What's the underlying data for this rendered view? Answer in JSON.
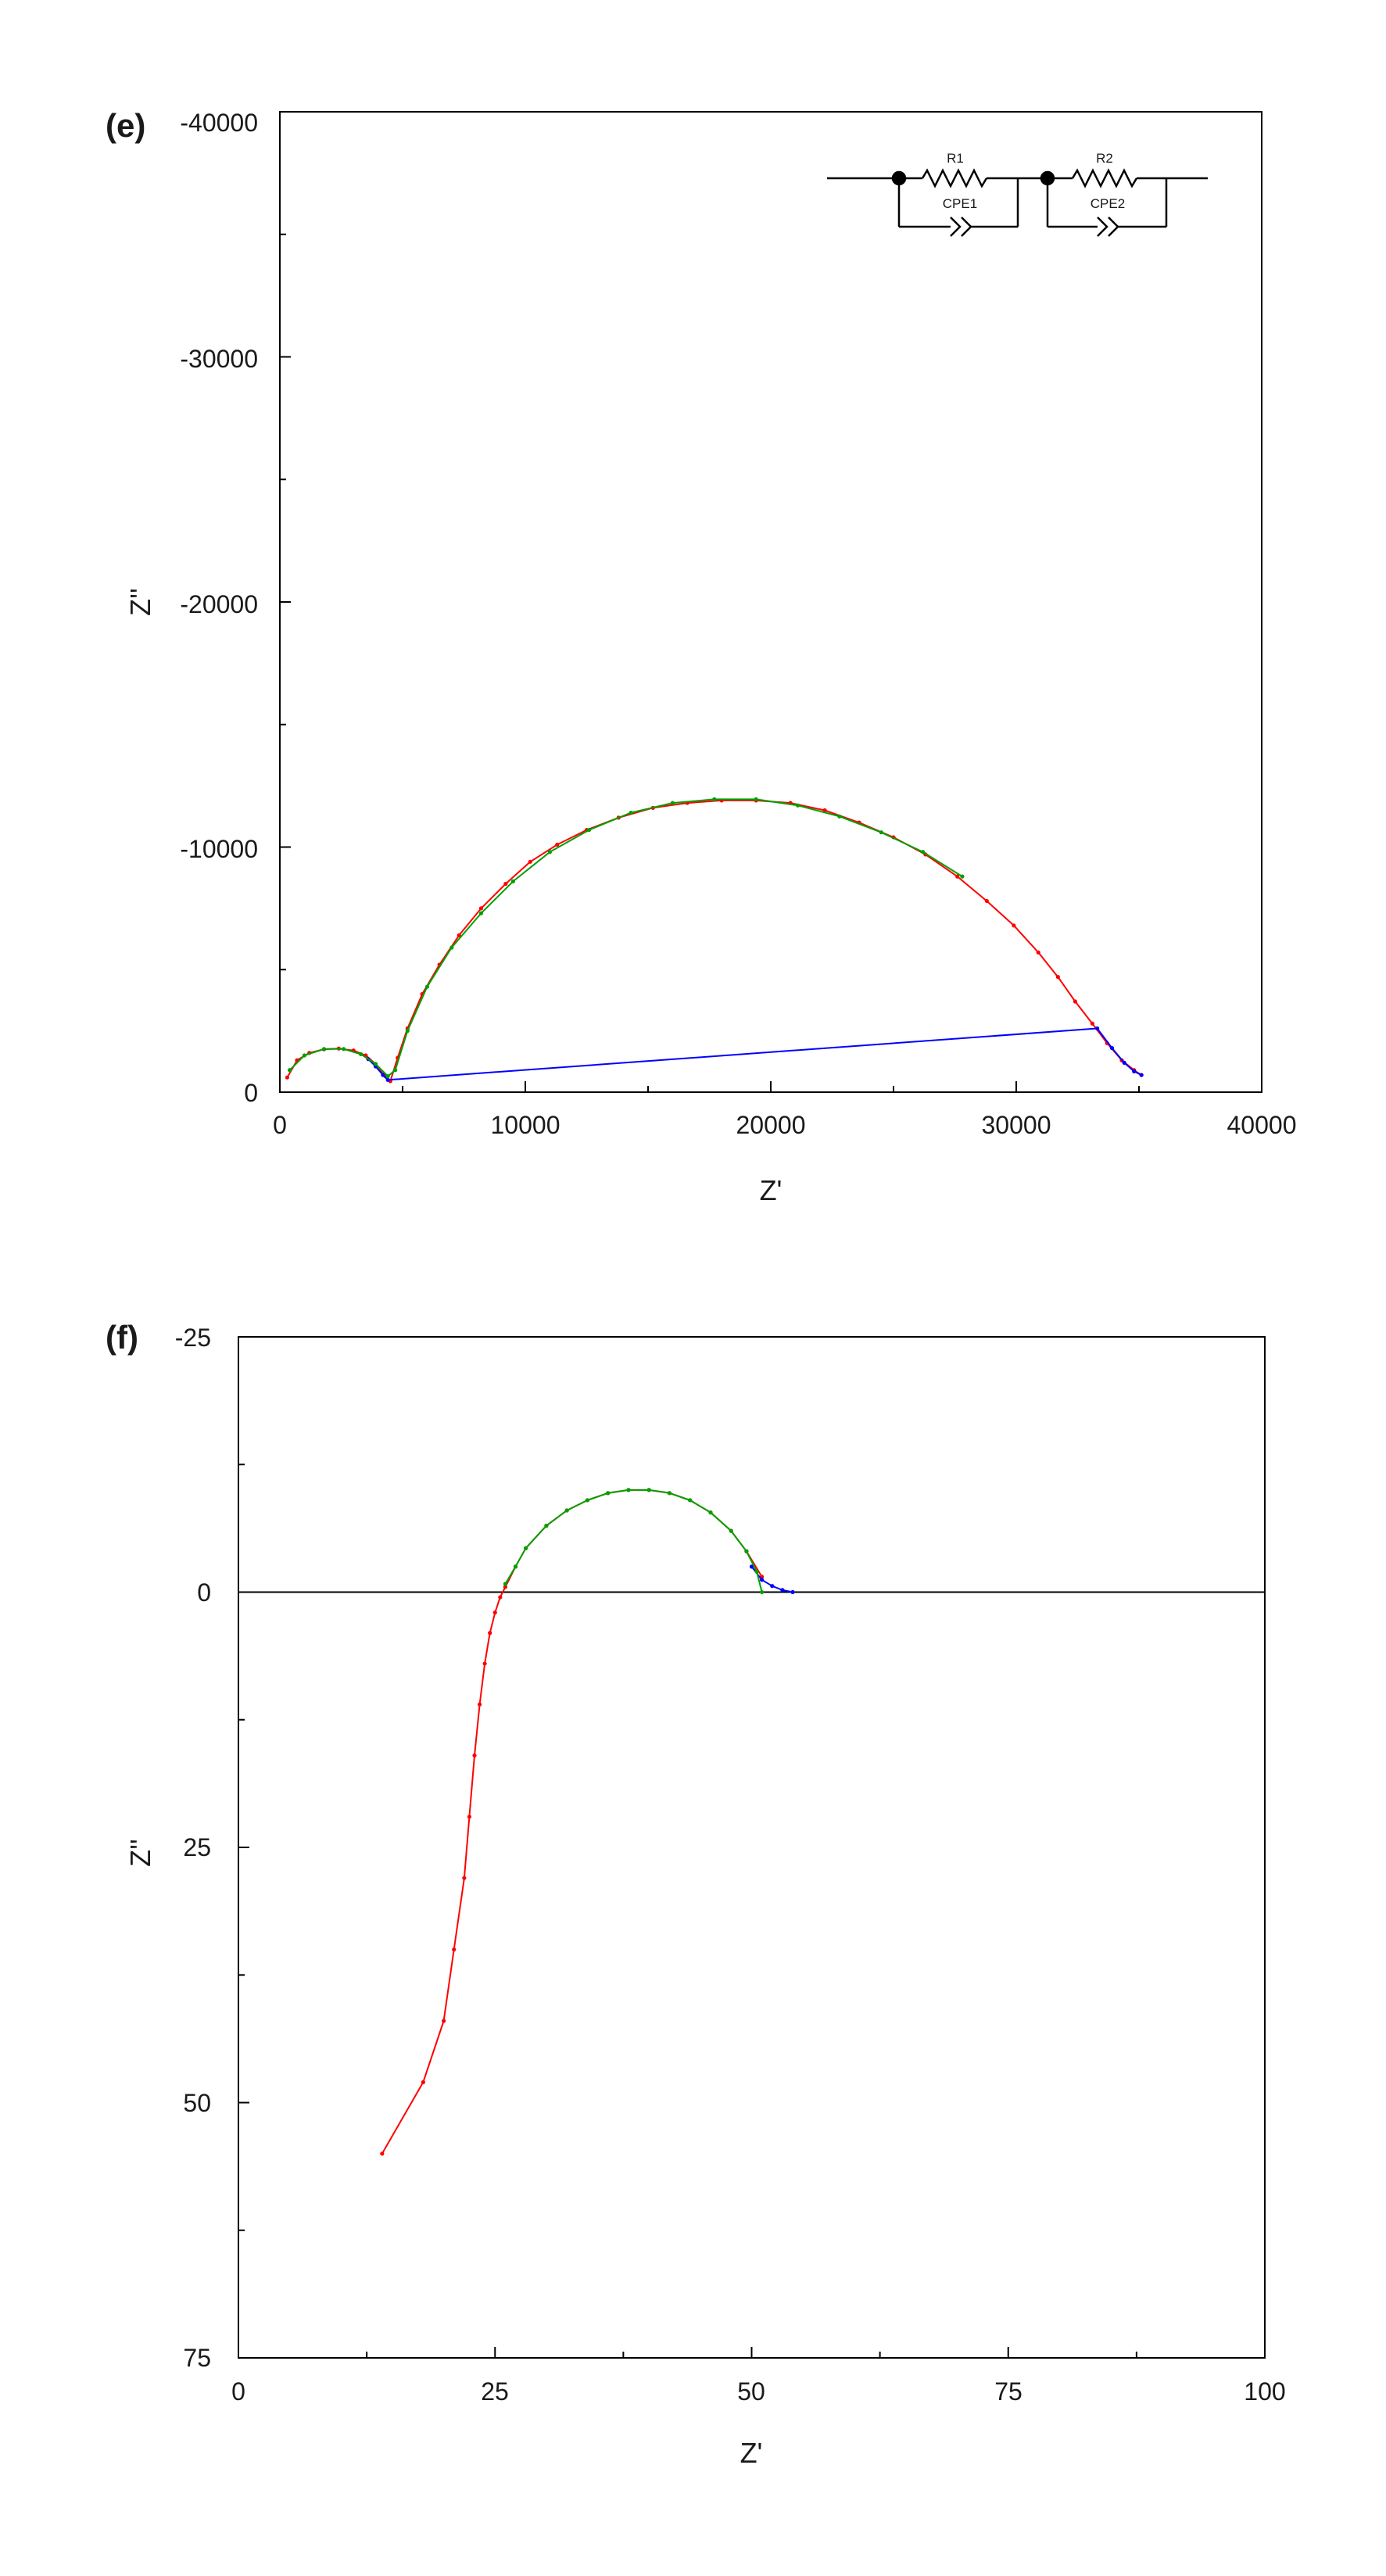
{
  "chart_data": [
    {
      "panel_label": "(e)",
      "type": "line",
      "xlabel": "Z'",
      "ylabel": "Z''",
      "xlim": [
        0,
        40000
      ],
      "ylim": [
        0,
        -40000
      ],
      "y_reversed": true,
      "x_ticks": [
        "0",
        "10000",
        "20000",
        "30000",
        "40000"
      ],
      "x_tick_values": [
        0,
        10000,
        20000,
        30000,
        40000
      ],
      "y_ticks": [
        "0",
        "-10000",
        "-20000",
        "-30000",
        "-40000"
      ],
      "y_tick_values": [
        0,
        -10000,
        -20000,
        -30000,
        -40000
      ],
      "grid": false,
      "inset": {
        "type": "circuit",
        "legend_position": "top-right",
        "labels": [
          "R1",
          "CPE1",
          "R2",
          "CPE2"
        ]
      },
      "series": [
        {
          "color": "#ff0000",
          "x": [
            300,
            700,
            1200,
            1800,
            2400,
            3000,
            3500,
            3900,
            4300,
            4500,
            4800,
            5200,
            5800,
            6500,
            7300,
            8200,
            9200,
            10200,
            11300,
            12500,
            13800,
            15200,
            16600,
            18000,
            19400,
            20800,
            22200,
            23600,
            25000,
            26300,
            27600,
            28800,
            29900,
            30900,
            31700,
            32400,
            33100,
            33700,
            34300,
            34800,
            35100
          ],
          "y": [
            -600,
            -1300,
            -1600,
            -1750,
            -1780,
            -1700,
            -1500,
            -1150,
            -650,
            -450,
            -1400,
            -2600,
            -4000,
            -5200,
            -6400,
            -7500,
            -8500,
            -9400,
            -10100,
            -10700,
            -11200,
            -11600,
            -11800,
            -11900,
            -11900,
            -11800,
            -11500,
            -11000,
            -10400,
            -9700,
            -8800,
            -7800,
            -6800,
            -5700,
            -4700,
            -3700,
            -2800,
            -2000,
            -1300,
            -900,
            -700
          ]
        },
        {
          "color": "#0000ff",
          "x": [
            3600,
            3900,
            4200,
            4400,
            33300,
            33900,
            34400,
            34800,
            35100
          ],
          "y": [
            -1350,
            -1050,
            -700,
            -500,
            -2600,
            -1800,
            -1200,
            -850,
            -700
          ]
        },
        {
          "color": "#00a000",
          "x": [
            400,
            1000,
            1800,
            2600,
            3300,
            3900,
            4400,
            4700,
            5200,
            6000,
            7000,
            8200,
            9500,
            11000,
            12600,
            14300,
            16000,
            17700,
            19400,
            21100,
            22800,
            24500,
            26200,
            27800
          ],
          "y": [
            -900,
            -1500,
            -1760,
            -1760,
            -1550,
            -1150,
            -650,
            -900,
            -2500,
            -4300,
            -5900,
            -7300,
            -8600,
            -9800,
            -10700,
            -11400,
            -11800,
            -11950,
            -11950,
            -11700,
            -11250,
            -10600,
            -9800,
            -8800
          ]
        }
      ]
    },
    {
      "panel_label": "(f)",
      "type": "line",
      "xlabel": "Z'",
      "ylabel": "Z''",
      "xlim": [
        0,
        100
      ],
      "ylim": [
        75,
        -25
      ],
      "y_reversed": true,
      "x_ticks": [
        "0",
        "25",
        "50",
        "75",
        "100"
      ],
      "x_tick_values": [
        0,
        25,
        50,
        75,
        100
      ],
      "y_ticks": [
        "-25",
        "0",
        "25",
        "50",
        "75"
      ],
      "y_tick_values": [
        -25,
        0,
        25,
        50,
        75
      ],
      "grid": false,
      "zero_line": 0,
      "series": [
        {
          "color": "#ff0000",
          "x": [
            14,
            18,
            20,
            21,
            22,
            22.5,
            23,
            23.5,
            24,
            24.5,
            25,
            25.5,
            26,
            27,
            28,
            30,
            32,
            34,
            36,
            38,
            40,
            42,
            44,
            46,
            48,
            49.5,
            51
          ],
          "y": [
            55,
            48,
            42,
            35,
            28,
            22,
            16,
            11,
            7,
            4,
            2,
            0.5,
            -0.5,
            -2.5,
            -4.3,
            -6.5,
            -8,
            -9,
            -9.7,
            -10,
            -10,
            -9.7,
            -9,
            -7.8,
            -6,
            -4,
            -1.5
          ]
        },
        {
          "color": "#0000ff",
          "x": [
            50,
            51,
            52,
            53,
            54
          ],
          "y": [
            -2.5,
            -1.2,
            -0.6,
            -0.2,
            0
          ]
        },
        {
          "color": "#00a000",
          "x": [
            26,
            27,
            28,
            30,
            32,
            34,
            36,
            38,
            40,
            42,
            44,
            46,
            48,
            49.5,
            50.5,
            51
          ],
          "y": [
            -0.8,
            -2.5,
            -4.3,
            -6.5,
            -8,
            -9,
            -9.7,
            -10,
            -10,
            -9.7,
            -9,
            -7.8,
            -6,
            -4,
            -2,
            0
          ]
        }
      ]
    }
  ]
}
